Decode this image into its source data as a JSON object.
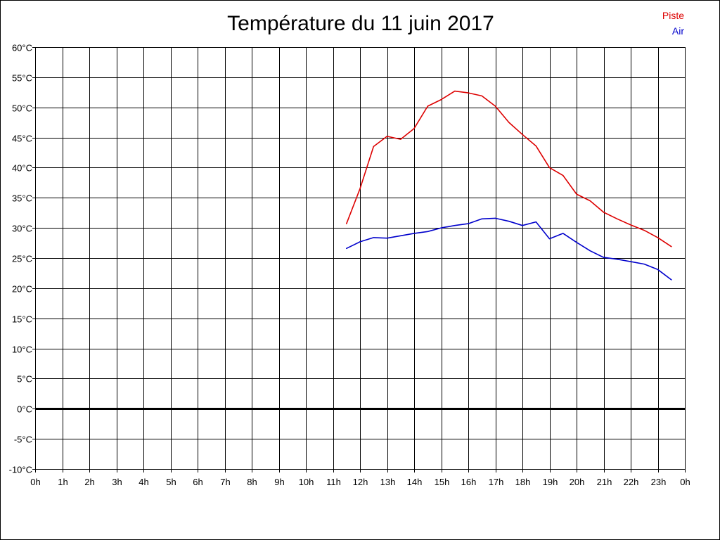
{
  "chart_data": {
    "type": "line",
    "title": "Température du 11 juin 2017",
    "xlabel": "",
    "ylabel": "",
    "x_ticks": [
      "0h",
      "1h",
      "2h",
      "3h",
      "4h",
      "5h",
      "6h",
      "7h",
      "8h",
      "9h",
      "10h",
      "11h",
      "12h",
      "13h",
      "14h",
      "15h",
      "16h",
      "17h",
      "18h",
      "19h",
      "20h",
      "21h",
      "22h",
      "23h",
      "0h"
    ],
    "y_ticks": [
      "-10°C",
      "-5°C",
      "0°C",
      "5°C",
      "10°C",
      "15°C",
      "20°C",
      "25°C",
      "30°C",
      "35°C",
      "40°C",
      "45°C",
      "50°C",
      "55°C",
      "60°C"
    ],
    "xlim": [
      0,
      24
    ],
    "ylim": [
      -10,
      60
    ],
    "grid": true,
    "legend_position": "top-right",
    "series": [
      {
        "name": "Piste",
        "color": "#dd0000",
        "x": [
          11.5,
          12,
          12.5,
          13,
          13.5,
          14,
          14.5,
          15,
          15.5,
          16,
          16.5,
          17,
          17.5,
          18,
          18.5,
          19,
          19.5,
          20,
          20.5,
          21,
          21.5,
          22,
          22.5,
          23,
          23.5
        ],
        "y": [
          30.7,
          36.5,
          43.5,
          45.2,
          44.7,
          46.5,
          50.2,
          51.3,
          52.7,
          52.4,
          51.9,
          50.2,
          47.5,
          45.5,
          43.6,
          40.0,
          38.7,
          35.6,
          34.5,
          32.6,
          31.5,
          30.5,
          29.6,
          28.4,
          26.9
        ]
      },
      {
        "name": "Air",
        "color": "#0000cc",
        "x": [
          11.5,
          12,
          12.5,
          13,
          13.5,
          14,
          14.5,
          15,
          15.5,
          16,
          16.5,
          17,
          17.5,
          18,
          18.5,
          19,
          19.5,
          20,
          20.5,
          21,
          21.5,
          22,
          22.5,
          23,
          23.5
        ],
        "y": [
          26.6,
          27.7,
          28.4,
          28.3,
          28.7,
          29.1,
          29.4,
          30.0,
          30.4,
          30.7,
          31.5,
          31.6,
          31.1,
          30.4,
          31.0,
          28.2,
          29.1,
          27.6,
          26.2,
          25.1,
          24.8,
          24.4,
          24.0,
          23.1,
          21.4
        ]
      }
    ]
  }
}
